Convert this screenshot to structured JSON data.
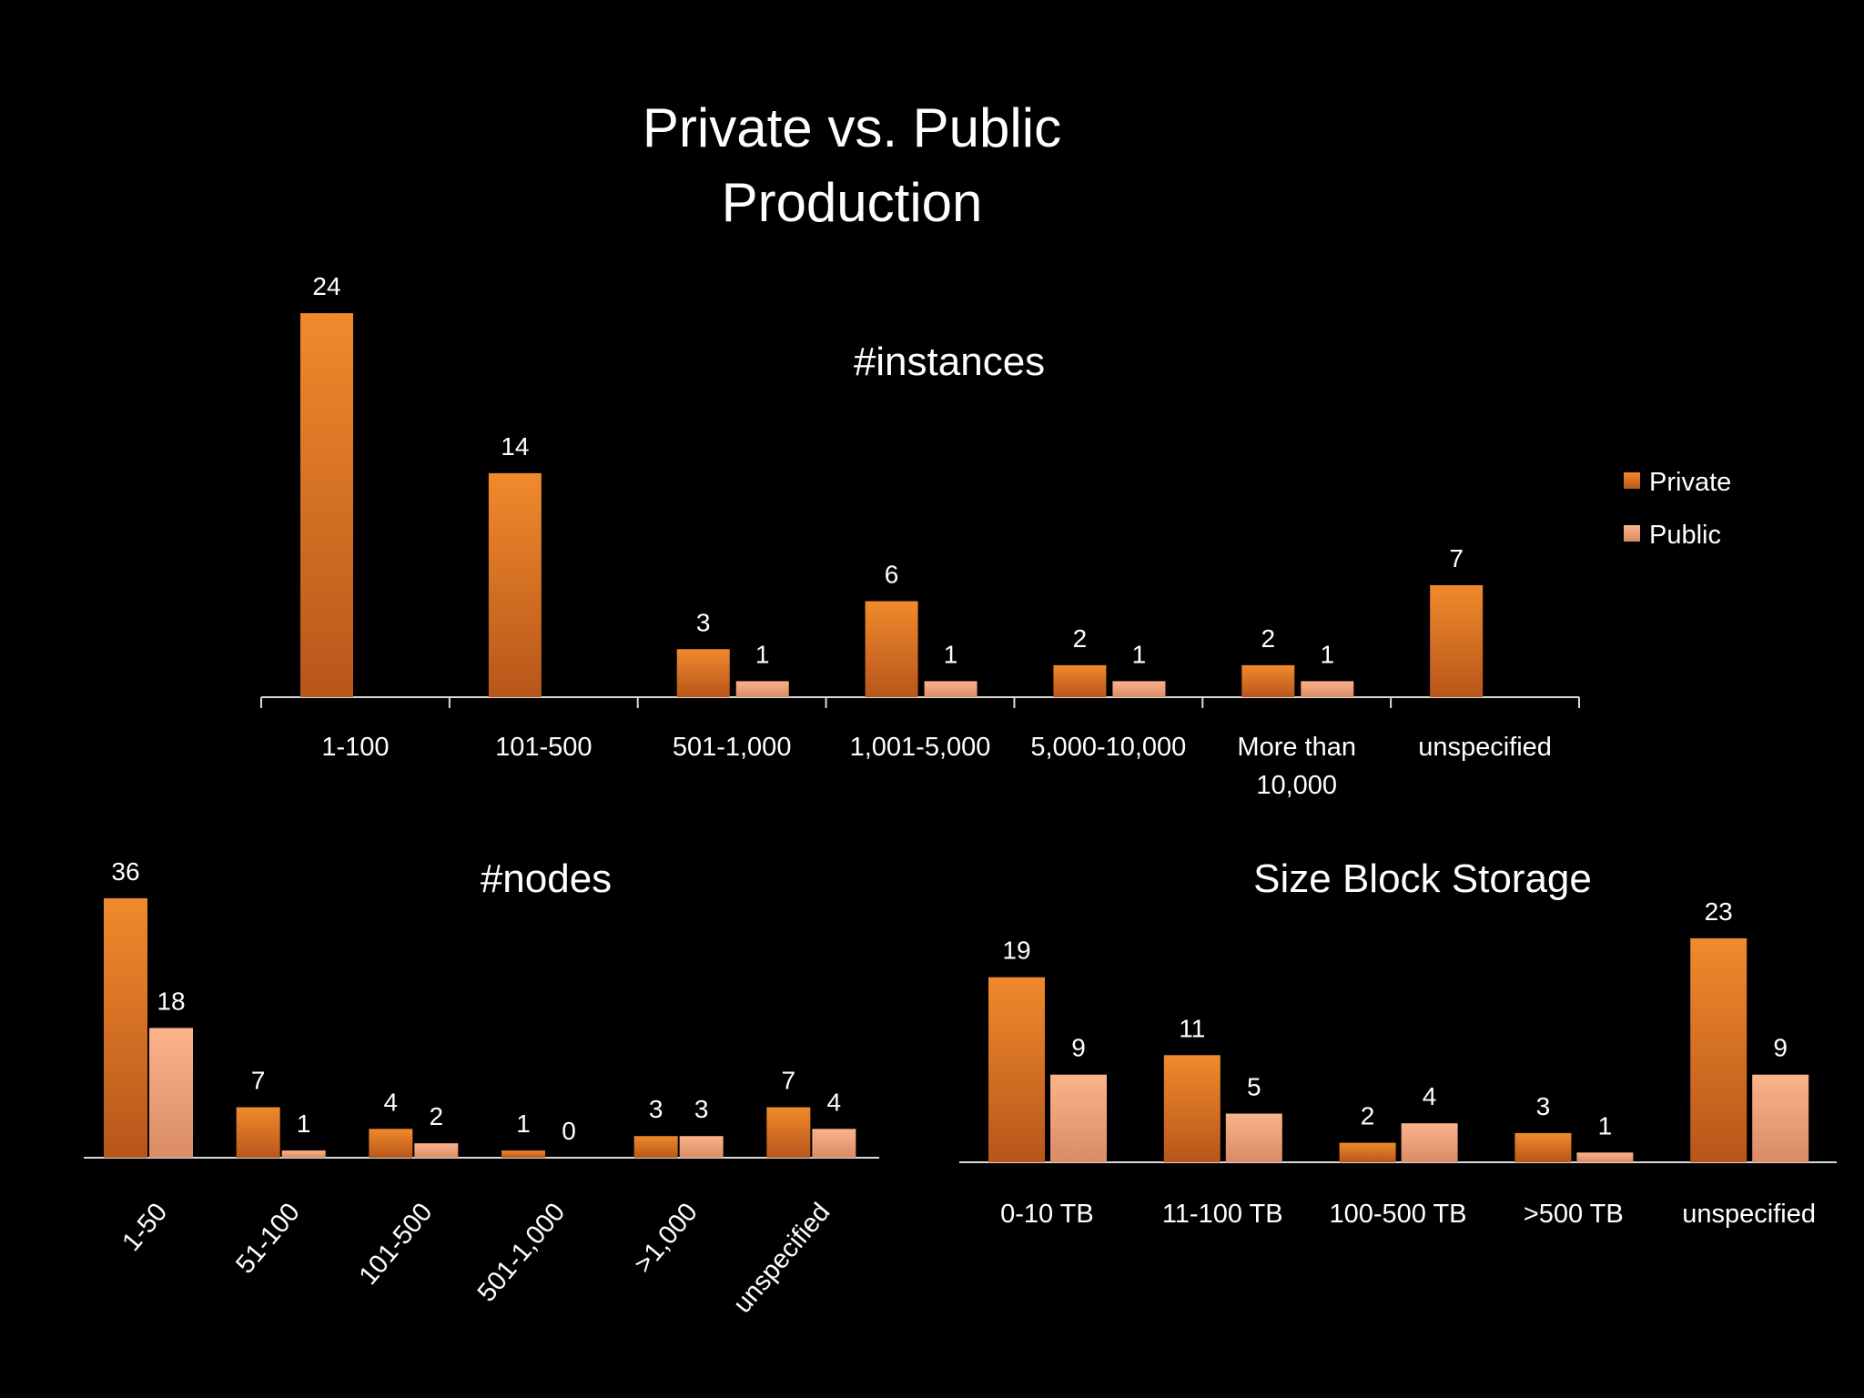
{
  "slide": {
    "title_line1": "Private vs. Public",
    "title_line2": "Production"
  },
  "colors": {
    "private_top": "#f08a2c",
    "private_bottom": "#b8561b",
    "public_top": "#fbb38a",
    "public_bottom": "#d98c67",
    "axis": "#d9d9d9",
    "background": "#000000",
    "text": "#ffffff"
  },
  "chart_data": [
    {
      "id": "instances",
      "type": "bar",
      "title": "#instances",
      "categories": [
        "1-100",
        "101-500",
        "501-1,000",
        "1,001-5,000",
        "5,000-10,000",
        "More than 10,000",
        "unspecified"
      ],
      "series": [
        {
          "name": "Private",
          "values": [
            24,
            14,
            3,
            6,
            2,
            2,
            7
          ]
        },
        {
          "name": "Public",
          "values": [
            null,
            null,
            1,
            1,
            1,
            1,
            null
          ]
        }
      ],
      "ylim": [
        0,
        25
      ],
      "legend": "right",
      "grid": false
    },
    {
      "id": "nodes",
      "type": "bar",
      "title": "#nodes",
      "categories": [
        "1-50",
        "51-100",
        "101-500",
        "501-1,000",
        ">1,000",
        "unspecified"
      ],
      "series": [
        {
          "name": "Private",
          "values": [
            36,
            7,
            4,
            1,
            3,
            7
          ]
        },
        {
          "name": "Public",
          "values": [
            18,
            1,
            2,
            0,
            3,
            4
          ]
        }
      ],
      "ylim": [
        0,
        37
      ],
      "grid": false
    },
    {
      "id": "storage",
      "type": "bar",
      "title": "Size Block Storage",
      "categories": [
        "0-10 TB",
        "11-100 TB",
        "100-500 TB",
        ">500 TB",
        "unspecified"
      ],
      "series": [
        {
          "name": "Private",
          "values": [
            19,
            11,
            2,
            3,
            23
          ]
        },
        {
          "name": "Public",
          "values": [
            9,
            5,
            4,
            1,
            9
          ]
        }
      ],
      "ylim": [
        0,
        23
      ],
      "grid": false
    }
  ]
}
